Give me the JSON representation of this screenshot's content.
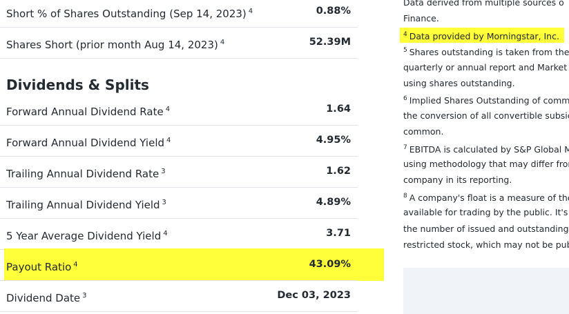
{
  "stats": [
    {
      "label": "Short % of Shares Outstanding (Sep 14, 2023)",
      "note": "4",
      "value": "0.88%"
    },
    {
      "label": "Shares Short (prior month Aug 14, 2023)",
      "note": "4",
      "value": "52.39M"
    }
  ],
  "section": {
    "title": "Dividends & Splits",
    "rows": [
      {
        "label": "Forward Annual Dividend Rate",
        "note": "4",
        "value": "1.64"
      },
      {
        "label": "Forward Annual Dividend Yield",
        "note": "4",
        "value": "4.95%"
      },
      {
        "label": "Trailing Annual Dividend Rate",
        "note": "3",
        "value": "1.62"
      },
      {
        "label": "Trailing Annual Dividend Yield",
        "note": "3",
        "value": "4.89%"
      },
      {
        "label": "5 Year Average Dividend Yield",
        "note": "4",
        "value": "3.71"
      },
      {
        "label": "Payout Ratio",
        "note": "4",
        "value": "43.09%",
        "highlight": true
      },
      {
        "label": "Dividend Date",
        "note": "3",
        "value": "Dec 03, 2023"
      }
    ]
  },
  "footnotes": [
    {
      "lines": [
        "Data derived from multiple sources o",
        "Finance."
      ]
    },
    {
      "sup": "4",
      "lines": [
        "Data provided by Morningstar, Inc."
      ],
      "highlight": true
    },
    {
      "sup": "5",
      "lines": [
        "Shares outstanding is taken from the",
        "quarterly or annual report and Market",
        "using shares outstanding."
      ]
    },
    {
      "sup": "6",
      "lines": [
        "Implied Shares Outstanding of comm",
        "the conversion of all convertible subsic",
        "common."
      ]
    },
    {
      "sup": "7",
      "lines": [
        "EBITDA is calculated by S&P Global M",
        "using methodology that may differ fror",
        "company in its reporting."
      ]
    },
    {
      "sup": "8",
      "lines": [
        "A company's float is a measure of the",
        "available for trading by the public. It's c",
        "the number of issued and outstanding",
        "restricted stock, which may not be pub"
      ]
    }
  ]
}
